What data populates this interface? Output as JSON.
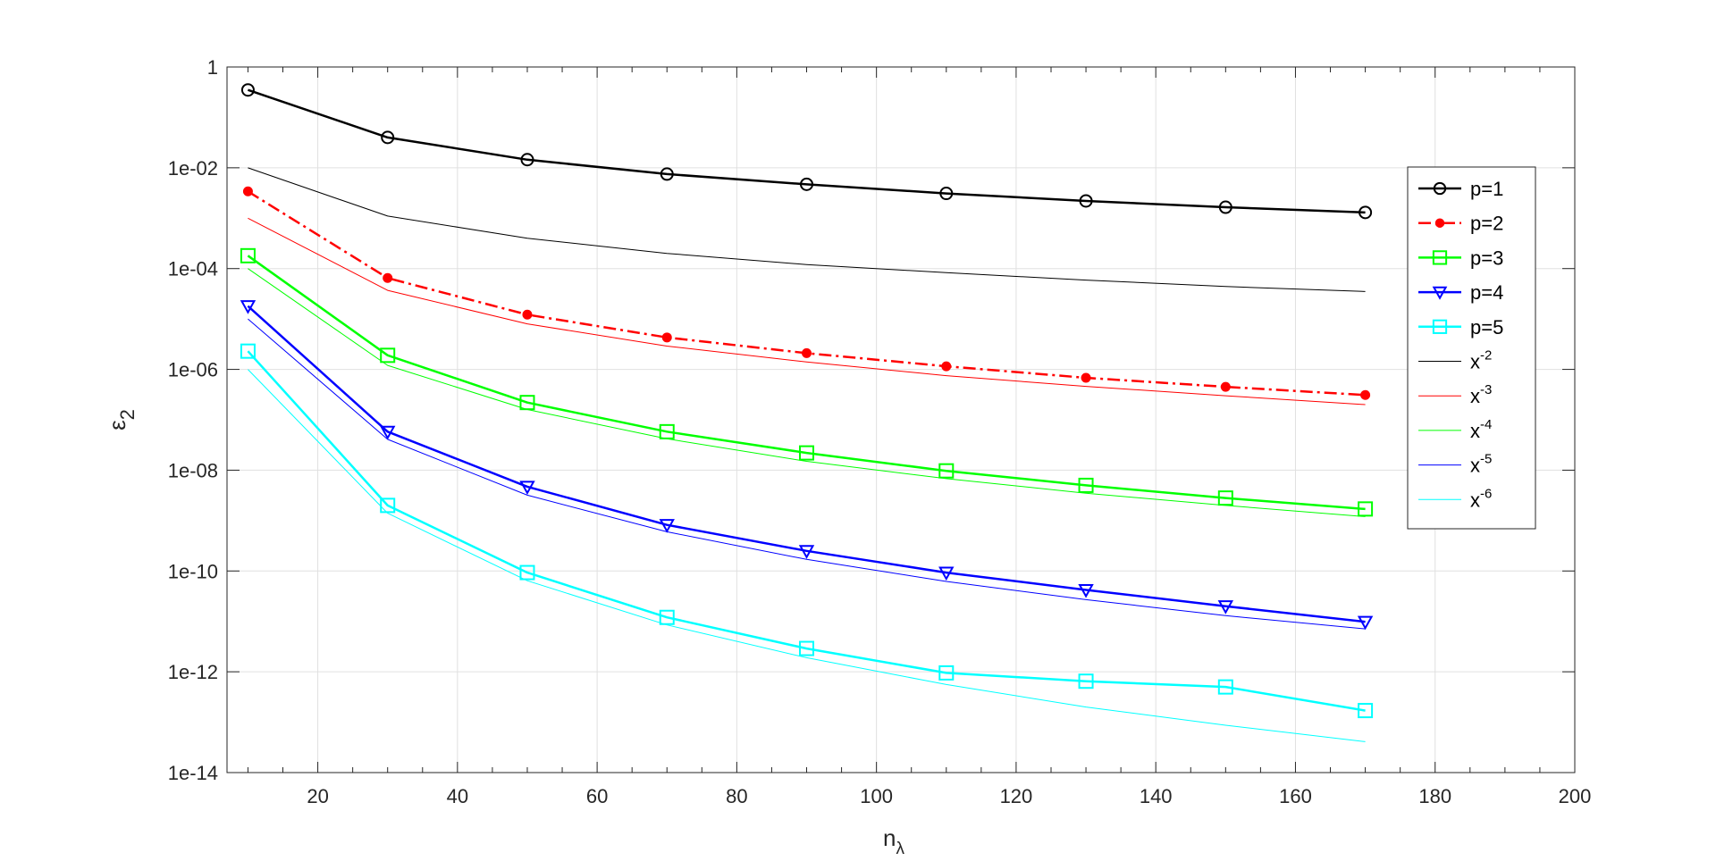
{
  "chart_data": {
    "type": "line",
    "xlabel": "n",
    "xlabel_sub": "λ",
    "ylabel": "ε",
    "ylabel_sub": "2",
    "y_scale": "log",
    "xlim": [
      7,
      200
    ],
    "ylim": [
      1e-14,
      1
    ],
    "x_ticks": [
      20,
      40,
      60,
      80,
      100,
      120,
      140,
      160,
      180,
      200
    ],
    "x_tick_labels": [
      "20",
      "40",
      "60",
      "80",
      "100",
      "120",
      "140",
      "160",
      "180",
      "200"
    ],
    "y_ticks": [
      1,
      0.01,
      0.0001,
      1e-06,
      1e-08,
      1e-10,
      1e-12,
      1e-14
    ],
    "y_tick_labels": [
      "1",
      "1e-02",
      "1e-04",
      "1e-06",
      "1e-08",
      "1e-10",
      "1e-12",
      "1e-14"
    ],
    "grid": true,
    "legend_position": "right",
    "x": [
      10,
      30,
      50,
      70,
      90,
      110,
      130,
      150,
      170
    ],
    "series": [
      {
        "name": "p=1",
        "color": "#000000",
        "marker": "circle",
        "style": "solid",
        "width": 2.5,
        "values": [
          0.35,
          0.04,
          0.0145,
          0.0075,
          0.0047,
          0.0031,
          0.0022,
          0.00165,
          0.0013
        ]
      },
      {
        "name": "p=2",
        "color": "#ff0000",
        "marker": "dot",
        "style": "dashdot",
        "width": 2.5,
        "values": [
          0.0034,
          6.5e-05,
          1.22e-05,
          4.3e-06,
          2.1e-06,
          1.15e-06,
          6.8e-07,
          4.5e-07,
          3.1e-07
        ]
      },
      {
        "name": "p=3",
        "color": "#00ff00",
        "marker": "square",
        "style": "solid",
        "width": 2.5,
        "values": [
          0.00018,
          1.9e-06,
          2.2e-07,
          5.8e-08,
          2.2e-08,
          9.7e-09,
          5e-09,
          2.8e-09,
          1.7e-09
        ]
      },
      {
        "name": "p=4",
        "color": "#0000ff",
        "marker": "triangle-down",
        "style": "solid",
        "width": 2.5,
        "values": [
          1.8e-05,
          5.8e-08,
          4.7e-09,
          8.2e-10,
          2.5e-10,
          9.3e-11,
          4.2e-11,
          2e-11,
          9.8e-12
        ]
      },
      {
        "name": "p=5",
        "color": "#00ffff",
        "marker": "square",
        "style": "solid",
        "width": 2.5,
        "values": [
          2.3e-06,
          2e-09,
          9.3e-11,
          1.2e-11,
          2.9e-12,
          9.5e-13,
          6.5e-13,
          5e-13,
          1.7e-13
        ]
      },
      {
        "name": "x",
        "sup": "-2",
        "color": "#000000",
        "marker": "none",
        "style": "solid",
        "width": 1,
        "values": [
          0.01,
          0.0011,
          0.0004,
          0.0002,
          0.00012,
          8.3e-05,
          5.9e-05,
          4.4e-05,
          3.5e-05
        ]
      },
      {
        "name": "x",
        "sup": "-3",
        "color": "#ff0000",
        "marker": "none",
        "style": "solid",
        "width": 1,
        "values": [
          0.001,
          3.7e-05,
          8e-06,
          2.9e-06,
          1.4e-06,
          7.5e-07,
          4.6e-07,
          3e-07,
          2e-07
        ]
      },
      {
        "name": "x",
        "sup": "-4",
        "color": "#00ff00",
        "marker": "none",
        "style": "solid",
        "width": 1,
        "values": [
          0.0001,
          1.2e-06,
          1.6e-07,
          4.2e-08,
          1.5e-08,
          6.8e-09,
          3.5e-09,
          2e-09,
          1.2e-09
        ]
      },
      {
        "name": "x",
        "sup": "-5",
        "color": "#0000ff",
        "marker": "none",
        "style": "solid",
        "width": 1,
        "values": [
          1e-05,
          4.1e-08,
          3.2e-09,
          6e-10,
          1.7e-10,
          6.2e-11,
          2.7e-11,
          1.3e-11,
          7.1e-12
        ]
      },
      {
        "name": "x",
        "sup": "-6",
        "color": "#00ffff",
        "marker": "none",
        "style": "solid",
        "width": 1,
        "values": [
          1e-06,
          1.4e-09,
          6.4e-11,
          8.5e-12,
          1.9e-12,
          5.6e-13,
          2e-13,
          8.7e-14,
          4.1e-14
        ]
      }
    ]
  }
}
